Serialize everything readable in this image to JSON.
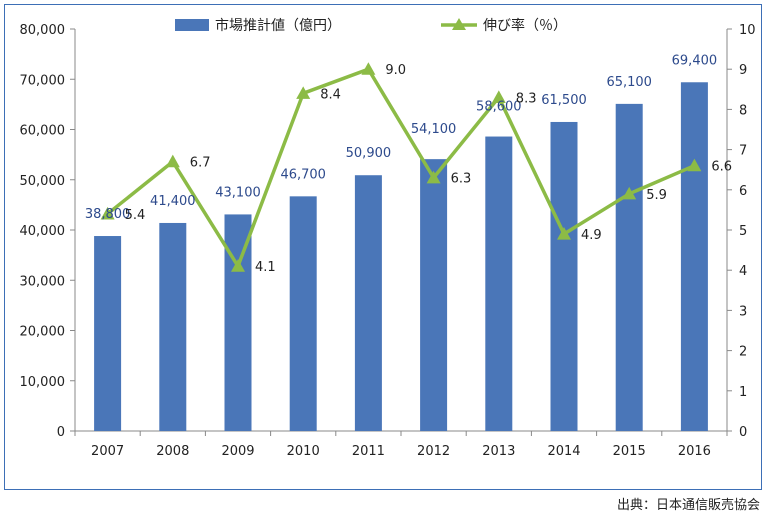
{
  "chart_data": {
    "type": "bar",
    "categories": [
      "2007",
      "2008",
      "2009",
      "2010",
      "2011",
      "2012",
      "2013",
      "2014",
      "2015",
      "2016"
    ],
    "series": [
      {
        "name": "市場推計値（億円）",
        "type": "bar",
        "axis": "left",
        "color": "#4a76b8",
        "values": [
          38800,
          41400,
          43100,
          46700,
          50900,
          54100,
          58600,
          61500,
          65100,
          69400
        ],
        "labels": [
          "38,800",
          "41,400",
          "43,100",
          "46,700",
          "50,900",
          "54,100",
          "58,600",
          "61,500",
          "65,100",
          "69,400"
        ]
      },
      {
        "name": "伸び率（％）",
        "type": "line",
        "axis": "right",
        "color": "#8cbb46",
        "values": [
          5.4,
          6.7,
          4.1,
          8.4,
          9.0,
          6.3,
          8.3,
          4.9,
          5.9,
          6.6
        ],
        "labels": [
          "5.4",
          "6.7",
          "4.1",
          "8.4",
          "9.0",
          "6.3",
          "8.3",
          "4.9",
          "5.9",
          "6.6"
        ]
      }
    ],
    "ylim_left": [
      0,
      80000
    ],
    "yticks_left": [
      "0",
      "10,000",
      "20,000",
      "30,000",
      "40,000",
      "50,000",
      "60,000",
      "70,000",
      "80,000"
    ],
    "ylim_right": [
      0,
      10
    ],
    "yticks_right": [
      "0",
      "1",
      "2",
      "3",
      "4",
      "5",
      "6",
      "7",
      "8",
      "9",
      "10"
    ],
    "legend_position": "top",
    "grid": false
  },
  "source_note": "出典：日本通信販売協会"
}
